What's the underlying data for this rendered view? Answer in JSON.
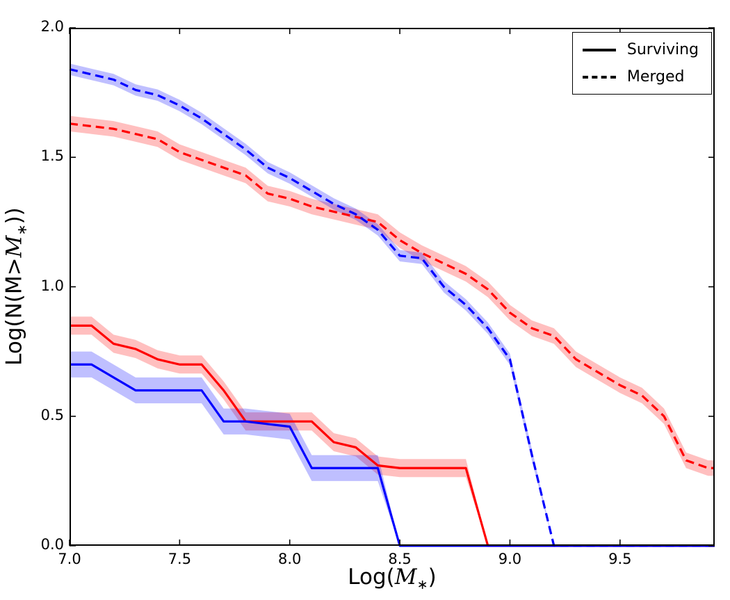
{
  "figure": {
    "background": "#ffffff",
    "xlabel_parts": {
      "pre": "Log(",
      "var": "M",
      "sub": "∗",
      "post": ")"
    },
    "ylabel_parts": {
      "pre": "Log(N(M>",
      "var": "M",
      "sub": "∗",
      "post": "))"
    }
  },
  "chart_data": {
    "type": "line",
    "title": "",
    "xlabel": "Log(M_*)",
    "ylabel": "Log(N(M>M_*))",
    "xlim": [
      7.0,
      9.93
    ],
    "ylim": [
      0.0,
      2.0
    ],
    "xticks": [
      7.0,
      7.5,
      8.0,
      8.5,
      9.0,
      9.5
    ],
    "yticks": [
      0.0,
      0.5,
      1.0,
      1.5,
      2.0
    ],
    "grid": false,
    "legend_position": "upper right",
    "legend": [
      {
        "label": "Surviving",
        "linestyle": "solid",
        "color": "#000000"
      },
      {
        "label": "Merged",
        "linestyle": "dashed",
        "color": "#000000"
      }
    ],
    "series": [
      {
        "name": "surviving-red",
        "legend_group": "Surviving",
        "color": "#ff0000",
        "linestyle": "solid",
        "band_halfwidth": 0.035,
        "x": [
          7.0,
          7.1,
          7.2,
          7.3,
          7.4,
          7.5,
          7.6,
          7.7,
          7.8,
          7.9,
          8.0,
          8.1,
          8.2,
          8.3,
          8.4,
          8.5,
          8.6,
          8.7,
          8.8,
          8.9,
          9.0,
          9.1,
          9.2,
          9.3,
          9.4,
          9.5,
          9.6,
          9.7,
          9.8,
          9.9,
          9.93
        ],
        "y": [
          0.85,
          0.85,
          0.78,
          0.76,
          0.72,
          0.7,
          0.7,
          0.6,
          0.48,
          0.48,
          0.48,
          0.48,
          0.4,
          0.38,
          0.31,
          0.3,
          0.3,
          0.3,
          0.3,
          0.0,
          0.0,
          0.0,
          0.0,
          0.0,
          0.0,
          0.0,
          0.0,
          0.0,
          0.0,
          0.0,
          0.0
        ]
      },
      {
        "name": "surviving-blue",
        "legend_group": "Surviving",
        "color": "#0000ff",
        "linestyle": "solid",
        "band_halfwidth": 0.05,
        "x": [
          7.0,
          7.1,
          7.2,
          7.3,
          7.4,
          7.5,
          7.6,
          7.7,
          7.8,
          7.9,
          8.0,
          8.1,
          8.2,
          8.3,
          8.4,
          8.5,
          8.6,
          8.7,
          8.8,
          8.9,
          9.0,
          9.1,
          9.2,
          9.3,
          9.4,
          9.5,
          9.6,
          9.7,
          9.8,
          9.9,
          9.93
        ],
        "y": [
          0.7,
          0.7,
          0.65,
          0.6,
          0.6,
          0.6,
          0.6,
          0.48,
          0.48,
          0.47,
          0.46,
          0.3,
          0.3,
          0.3,
          0.3,
          0.0,
          0.0,
          0.0,
          0.0,
          0.0,
          0.0,
          0.0,
          0.0,
          0.0,
          0.0,
          0.0,
          0.0,
          0.0,
          0.0,
          0.0,
          0.0
        ]
      },
      {
        "name": "merged-red",
        "legend_group": "Merged",
        "color": "#ff0000",
        "linestyle": "dashed",
        "band_halfwidth": 0.03,
        "x": [
          7.0,
          7.1,
          7.2,
          7.3,
          7.4,
          7.5,
          7.6,
          7.7,
          7.8,
          7.9,
          8.0,
          8.1,
          8.2,
          8.3,
          8.4,
          8.5,
          8.6,
          8.7,
          8.8,
          8.9,
          9.0,
          9.1,
          9.2,
          9.3,
          9.4,
          9.5,
          9.6,
          9.7,
          9.8,
          9.9,
          9.93
        ],
        "y": [
          1.63,
          1.62,
          1.61,
          1.59,
          1.57,
          1.52,
          1.49,
          1.46,
          1.43,
          1.36,
          1.34,
          1.31,
          1.29,
          1.27,
          1.25,
          1.18,
          1.13,
          1.09,
          1.05,
          0.99,
          0.9,
          0.84,
          0.81,
          0.72,
          0.67,
          0.62,
          0.58,
          0.5,
          0.33,
          0.3,
          0.3
        ]
      },
      {
        "name": "merged-blue",
        "legend_group": "Merged",
        "color": "#0000ff",
        "linestyle": "dashed",
        "band_halfwidth": 0.022,
        "x": [
          7.0,
          7.1,
          7.2,
          7.3,
          7.4,
          7.5,
          7.6,
          7.7,
          7.8,
          7.9,
          8.0,
          8.1,
          8.2,
          8.3,
          8.4,
          8.5,
          8.6,
          8.7,
          8.8,
          8.9,
          9.0,
          9.1,
          9.2,
          9.3,
          9.4,
          9.5,
          9.6,
          9.7,
          9.8,
          9.9,
          9.93
        ],
        "y": [
          1.84,
          1.82,
          1.8,
          1.76,
          1.74,
          1.7,
          1.65,
          1.59,
          1.53,
          1.46,
          1.42,
          1.37,
          1.32,
          1.28,
          1.22,
          1.12,
          1.11,
          1.0,
          0.93,
          0.84,
          0.72,
          0.35,
          0.0,
          0.0,
          0.0,
          0.0,
          0.0,
          0.0,
          0.0,
          0.0,
          0.0
        ]
      }
    ]
  }
}
